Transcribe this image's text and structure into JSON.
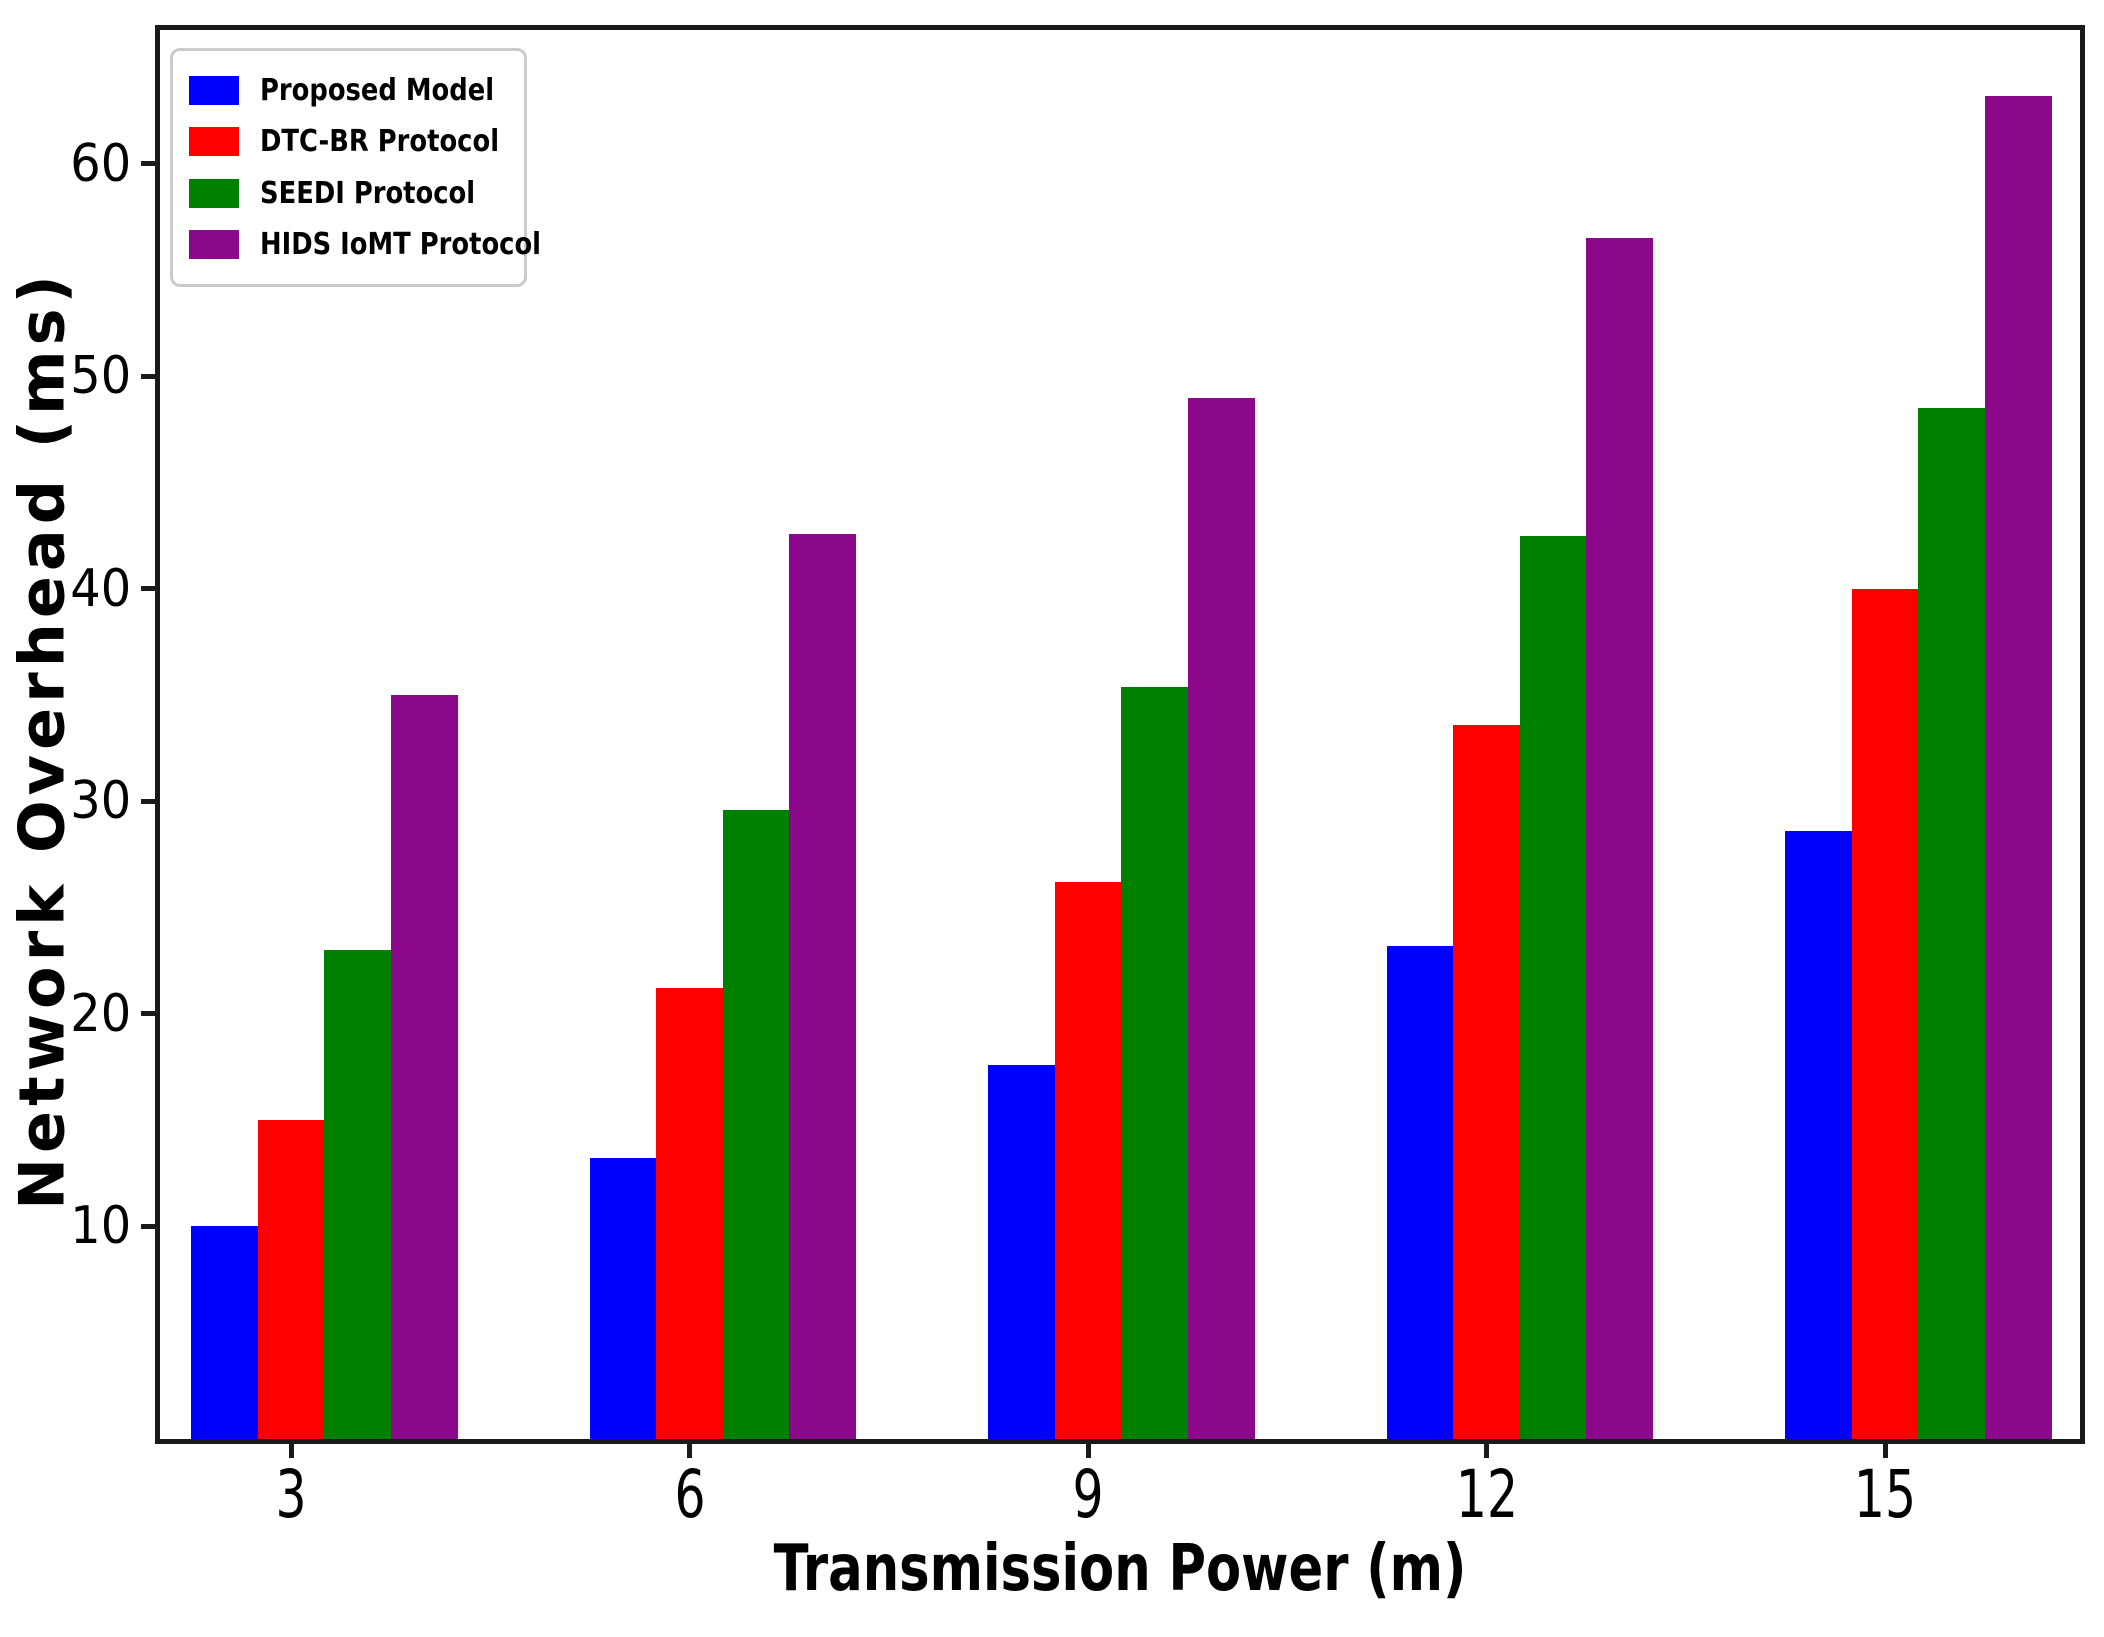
{
  "figure": {
    "x_axis_title": "Transmission Power (m)",
    "y_axis_title": "Network Overhead (ms)"
  },
  "chart_data": {
    "type": "bar",
    "title": "",
    "xlabel": "Transmission Power (m)",
    "ylabel": "Network Overhead (ms)",
    "categories": [
      "3",
      "6",
      "9",
      "12",
      "15"
    ],
    "series": [
      {
        "name": "Proposed Model",
        "color": "#0000ff",
        "values": [
          10.0,
          13.2,
          17.6,
          23.2,
          28.6
        ]
      },
      {
        "name": "DTC-BR Protocol",
        "color": "#ff0000",
        "values": [
          15.0,
          21.2,
          26.2,
          33.6,
          40.0
        ]
      },
      {
        "name": "SEEDI Protocol",
        "color": "#008000",
        "values": [
          23.0,
          29.6,
          35.4,
          42.5,
          48.5
        ]
      },
      {
        "name": "HIDS IoMT Protocol",
        "color": "#8a0889",
        "values": [
          35.0,
          42.6,
          49.0,
          56.5,
          63.2
        ]
      }
    ],
    "yticks": [
      10,
      20,
      30,
      40,
      50,
      60
    ],
    "ylim": [
      0,
      66.3
    ],
    "grid": false,
    "legend_position": "upper-left",
    "axis_color": "#1a1a1a",
    "background_color": "#ffffff"
  }
}
